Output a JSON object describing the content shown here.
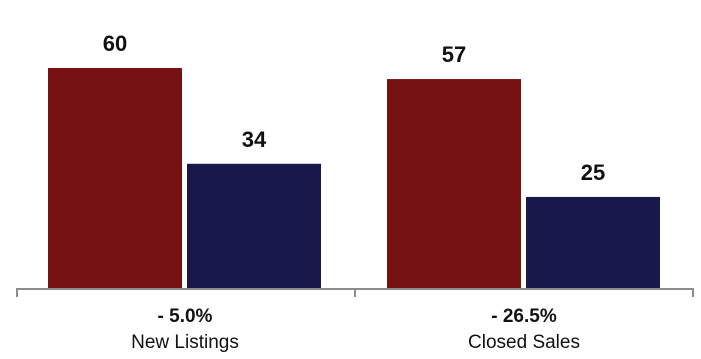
{
  "chart_data": {
    "type": "bar",
    "categories": [
      "New Listings",
      "Closed Sales"
    ],
    "changes": [
      "- 5.0%",
      "- 26.5%"
    ],
    "series": [
      {
        "values": [
          60,
          57
        ],
        "color": "#761214"
      },
      {
        "values": [
          34,
          25
        ],
        "color": "#18194a"
      }
    ],
    "ylim": [
      0,
      60
    ],
    "grid": false,
    "legend": "none"
  }
}
